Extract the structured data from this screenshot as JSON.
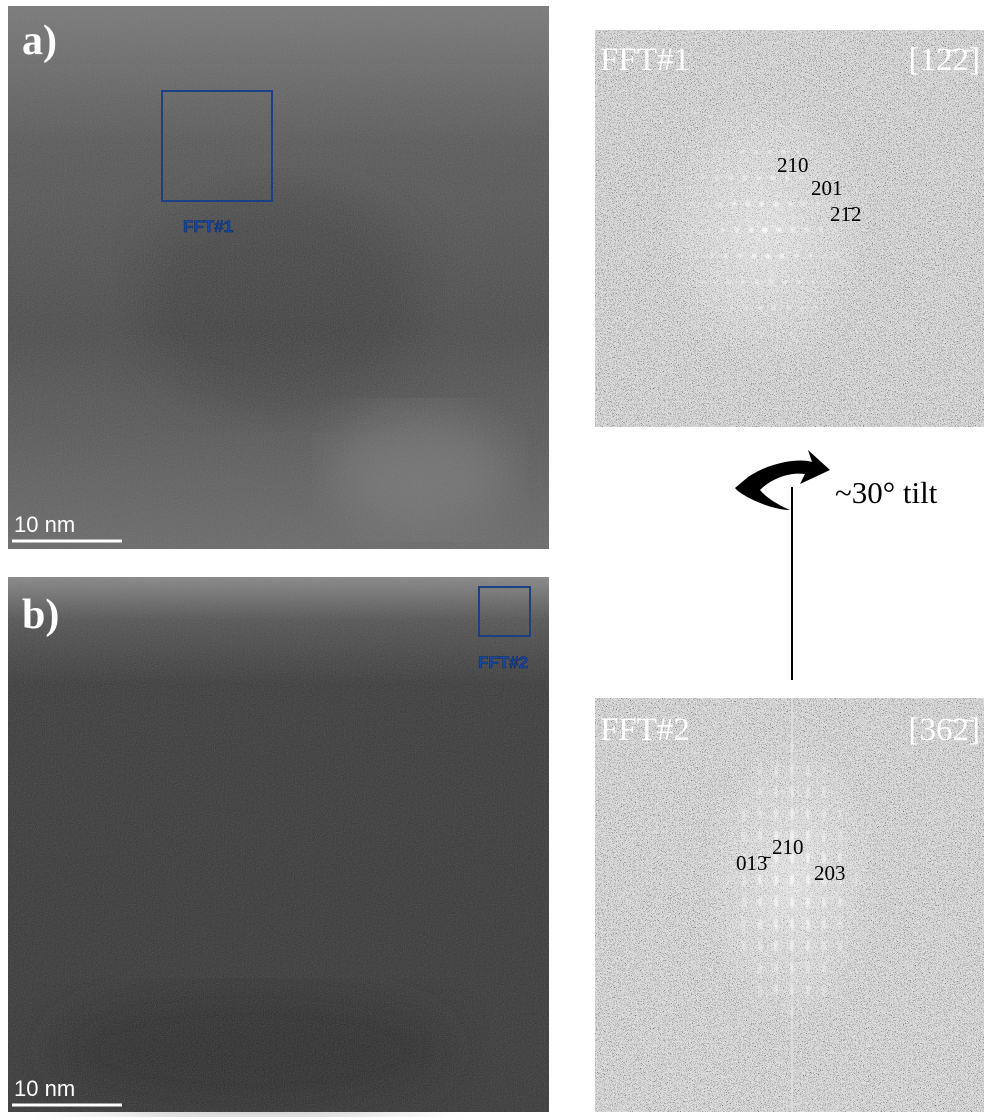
{
  "panels": [
    {
      "label": "a)",
      "scale_bar": "10 nm",
      "roi_label": "FFT#1"
    },
    {
      "label": "b)",
      "scale_bar": "10 nm",
      "roi_label": "FFT#2"
    }
  ],
  "ffts": [
    {
      "title": "FFT#1",
      "zone_axis": "[12̄2̄]",
      "spots": [
        "210",
        "201",
        "21̄2"
      ]
    },
    {
      "title": "FFT#2",
      "zone_axis": "[36̄2̄]",
      "spots": [
        "210",
        "013̄",
        "203"
      ]
    }
  ],
  "tilt": {
    "label": "~30° tilt"
  }
}
